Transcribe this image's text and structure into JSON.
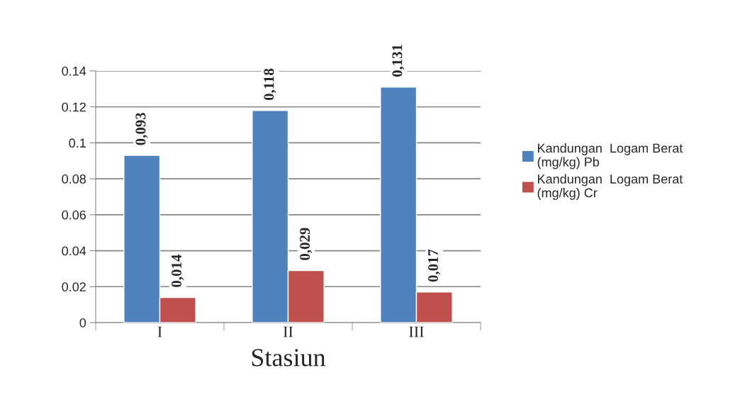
{
  "chart_data": {
    "type": "bar",
    "xlabel": "Stasiun",
    "categories": [
      "I",
      "II",
      "III"
    ],
    "series": [
      {
        "name": "Kandungan  Logam Berat\n(mg/kg) Pb",
        "color": "#4f81bd",
        "values": [
          0.093,
          0.118,
          0.131
        ],
        "value_labels": [
          "0,093",
          "0,118",
          "0,131"
        ]
      },
      {
        "name": "Kandungan  Logam Berat\n(mg/kg) Cr",
        "color": "#c0504d",
        "values": [
          0.014,
          0.029,
          0.017
        ],
        "value_labels": [
          "0,014",
          "0,029",
          "0,017"
        ]
      }
    ],
    "ylim": [
      0,
      0.14
    ],
    "yticks": [
      0,
      {
        "value": 0.02,
        "label": "0.02"
      },
      {
        "value": 0.04,
        "label": "0.04"
      },
      {
        "value": 0.06,
        "label": "0.06"
      },
      {
        "value": 0.08,
        "label": "0.08"
      },
      {
        "value": 0.1,
        "label": "0.1"
      },
      {
        "value": 0.12,
        "label": "0.12"
      },
      {
        "value": 0.14,
        "label": "0.14"
      }
    ],
    "grid": "y",
    "legend": "right"
  }
}
